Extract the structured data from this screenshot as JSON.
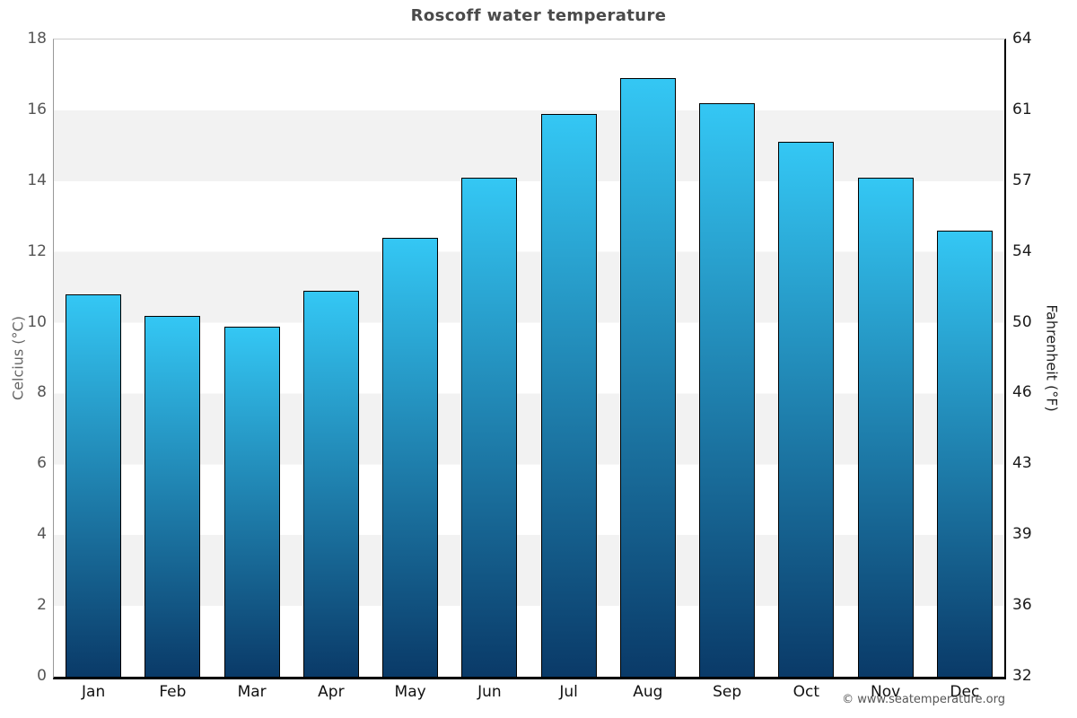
{
  "title": "Roscoff water temperature",
  "watermark": "© www.seatemperature.org",
  "chart_data": {
    "type": "bar",
    "title": "Roscoff water temperature",
    "categories": [
      "Jan",
      "Feb",
      "Mar",
      "Apr",
      "May",
      "Jun",
      "Jul",
      "Aug",
      "Sep",
      "Oct",
      "Nov",
      "Dec"
    ],
    "values": [
      10.8,
      10.2,
      9.9,
      10.9,
      12.4,
      14.1,
      15.9,
      16.9,
      16.2,
      15.1,
      14.1,
      12.6
    ],
    "ylabel_left": "Celcius (°C)",
    "ylabel_right": "Fahrenheit (°F)",
    "ylim_celsius": [
      0,
      18
    ],
    "celsius_ticks": [
      18,
      16,
      14,
      12,
      10,
      8,
      6,
      4,
      2,
      0
    ],
    "fahrenheit_ticks": [
      64,
      61,
      57,
      54,
      50,
      46,
      43,
      39,
      36,
      32
    ],
    "grid": "alternating horizontal bands, no legend",
    "legend_position": "none",
    "colors": {
      "bar_gradient_top": "#34c7f4",
      "bar_gradient_bottom": "#0a3a68",
      "bar_border": "#000000",
      "band_gray": "#f2f2f2",
      "band_white": "#ffffff",
      "title_text": "#4a4a4a",
      "left_tick_text": "#555555",
      "right_tick_text": "#1a1a1a"
    }
  }
}
